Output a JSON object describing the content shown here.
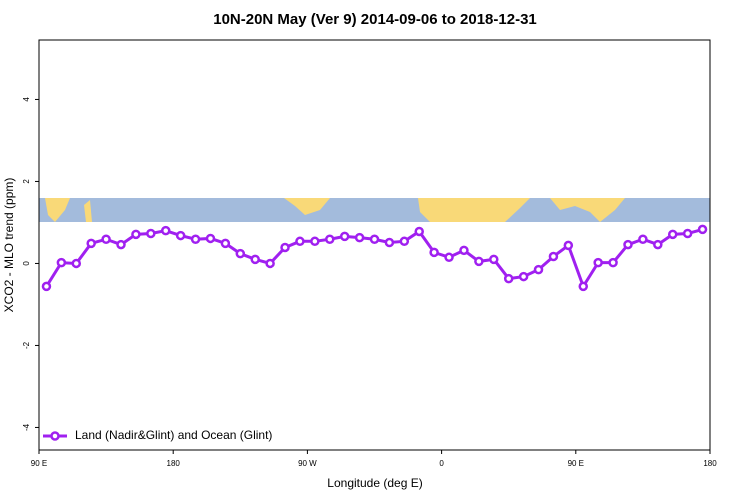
{
  "chart_data": {
    "type": "line",
    "title": "10N-20N May (Ver 9)   2014-09-06 to 2018-12-31",
    "x_label": "Longitude (deg E)",
    "y_label": "XCO2 - MLO trend (ppm)",
    "xlim": [
      90,
      540
    ],
    "ylim": [
      -4.55,
      5.45
    ],
    "xticks": [
      {
        "value": 90,
        "label": "90 E"
      },
      180,
      {
        "value": 270,
        "label": "90 W"
      },
      {
        "value": 360,
        "label": "0"
      },
      {
        "value": 450,
        "label": "90 E"
      },
      {
        "value": 540,
        "label": "180"
      }
    ],
    "yticks": [
      -4,
      -2,
      0,
      2,
      4
    ],
    "legend": "bottom left",
    "x": [
      95,
      105,
      115,
      125,
      135,
      145,
      155,
      165,
      175,
      185,
      195,
      205,
      215,
      225,
      235,
      245,
      255,
      265,
      275,
      285,
      295,
      305,
      315,
      325,
      335,
      345,
      355,
      365,
      375,
      385,
      395,
      405,
      415,
      425,
      435,
      445,
      455,
      465,
      475,
      485,
      495,
      505,
      515,
      525,
      535
    ],
    "series": [
      {
        "name": "Land (Nadir&Glint) and Ocean (Glint)",
        "color": "#a020f0",
        "values": [
          -0.56,
          0.02,
          0.0,
          0.49,
          0.59,
          0.46,
          0.71,
          0.73,
          0.8,
          0.68,
          0.59,
          0.61,
          0.49,
          0.24,
          0.1,
          0.0,
          0.39,
          0.54,
          0.54,
          0.59,
          0.66,
          0.63,
          0.59,
          0.51,
          0.54,
          0.78,
          0.27,
          0.15,
          0.32,
          0.05,
          0.1,
          -0.37,
          -0.32,
          -0.15,
          0.17,
          0.44,
          -0.56,
          0.02,
          0.02,
          0.46,
          0.59,
          0.46,
          0.71,
          0.73,
          0.83
        ]
      }
    ]
  }
}
